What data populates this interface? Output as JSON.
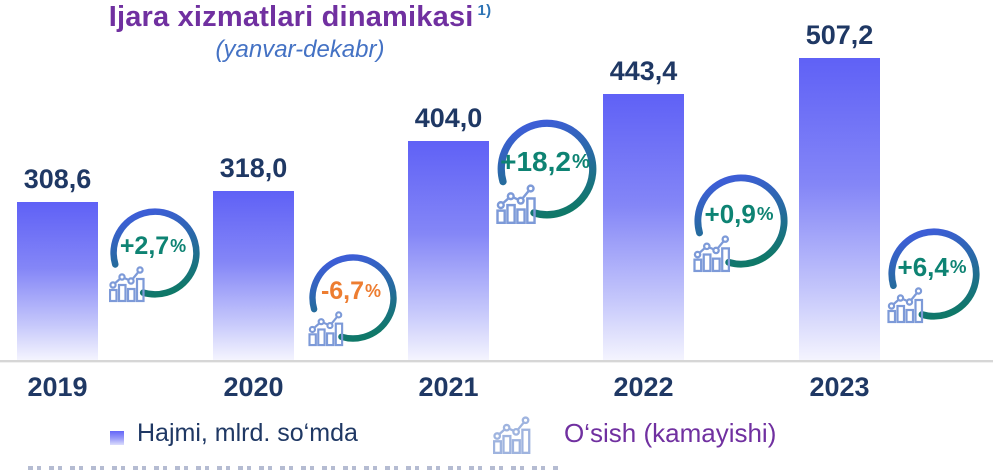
{
  "header": {
    "title": "Ijara xizmatlari dinamikasi",
    "title_superscript": "1)",
    "subtitle": "(yanvar-dekabr)"
  },
  "chart_data": {
    "type": "bar",
    "title": "Ijara xizmatlari dinamikasi (yanvar-dekabr)",
    "categories": [
      "2019",
      "2020",
      "2021",
      "2022",
      "2023"
    ],
    "values": [
      308.6,
      318.0,
      404.0,
      443.4,
      507.2
    ],
    "value_labels": [
      "308,6",
      "318,0",
      "404,0",
      "443,4",
      "507,2"
    ],
    "series_name": "Hajmi, mlrd. so‘mda",
    "growth_series": {
      "name": "O‘sish (kamayishi)",
      "values_percent": [
        2.7,
        -6.7,
        18.2,
        0.9,
        6.4
      ],
      "labels": [
        "+2,7",
        "-6,7",
        "+18,2",
        "+0,9",
        "+6,4"
      ],
      "percent_sign": "%"
    },
    "xlabel": "",
    "ylabel": "",
    "grid": false,
    "legend_position": "bottom",
    "baseline_visible": true
  },
  "legend": {
    "bars_label": "Hajmi, mlrd. so‘mda",
    "growth_label": "O‘sish (kamayishi)"
  },
  "colors": {
    "title": "#7030A0",
    "title_superscript": "#2E74B5",
    "subtitle": "#4472C4",
    "value_label": "#1F3864",
    "bar_top": "#5F61F6",
    "bar_bottom": "#F4F4FE",
    "axis_line": "#D6D6D6",
    "ring_gradient_top": "#0F7868",
    "ring_gradient_bottom": "#3D5ED6",
    "growth_positive": "#0E8373",
    "growth_negative": "#ED7D31",
    "badge_icon": "#7D9AD8",
    "legend_icon": "#9FB4DF",
    "legend_growth_text": "#7030A0"
  },
  "icons": {
    "growth_icon": "bar-chart-trend-icon",
    "legend_swatch": "bar-series-swatch"
  }
}
